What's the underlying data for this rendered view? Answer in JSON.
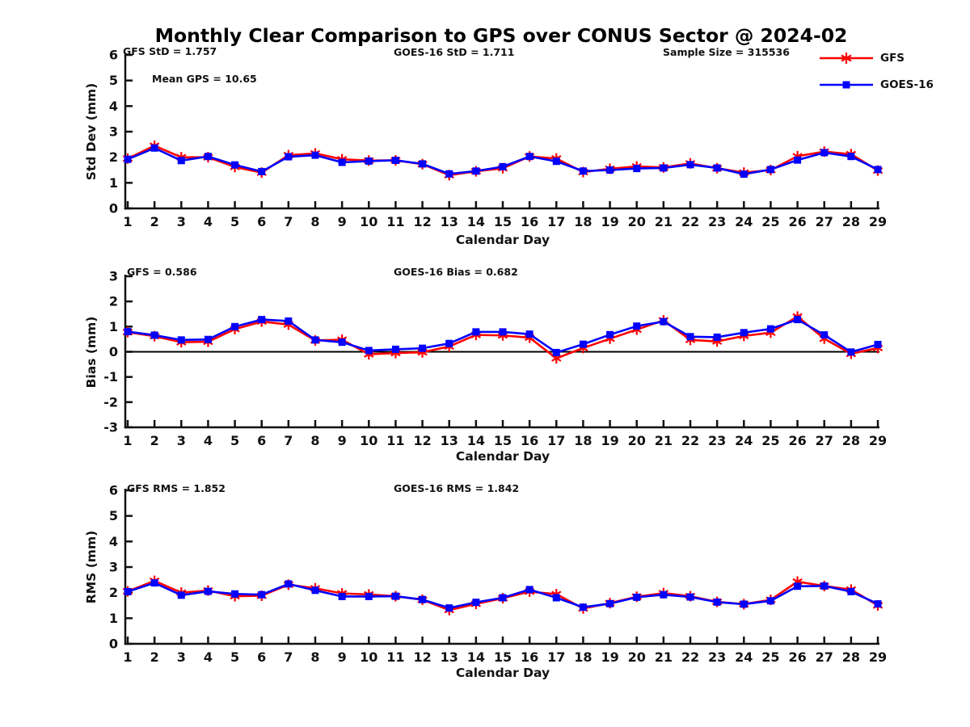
{
  "title": "Monthly Clear Comparison to GPS over CONUS Sector @ 2024-02",
  "xlabel": "Calendar Day",
  "colors": {
    "gfs": "#ff0000",
    "goes16": "#0000ff",
    "axis": "#111111",
    "zero_line": "#000000"
  },
  "legend": [
    {
      "label": "GFS",
      "color": "#ff0000",
      "marker": "asterisk"
    },
    {
      "label": "GOES-16",
      "color": "#0000ff",
      "marker": "square"
    }
  ],
  "chart_data": [
    {
      "type": "line",
      "ylabel": "Std Dev (mm)",
      "ylim": [
        0,
        6
      ],
      "yticks": [
        0,
        1,
        2,
        3,
        4,
        5,
        6
      ],
      "grid": false,
      "annotations": [
        {
          "text": "GFS StD = 1.757"
        },
        {
          "text": "GOES-16 StD = 1.711"
        },
        {
          "text": "Sample Size = 315536"
        },
        {
          "text": "Mean GPS = 10.65"
        }
      ],
      "x": [
        1,
        2,
        3,
        4,
        5,
        6,
        7,
        8,
        9,
        10,
        11,
        12,
        13,
        14,
        15,
        16,
        17,
        18,
        19,
        20,
        21,
        22,
        23,
        24,
        25,
        26,
        27,
        28,
        29
      ],
      "series": [
        {
          "name": "GFS",
          "color": "#ff0000",
          "marker": "asterisk",
          "values": [
            1.95,
            2.45,
            2.0,
            2.0,
            1.62,
            1.4,
            2.08,
            2.15,
            1.92,
            1.87,
            1.88,
            1.73,
            1.3,
            1.45,
            1.57,
            2.03,
            1.95,
            1.42,
            1.55,
            1.64,
            1.6,
            1.76,
            1.57,
            1.4,
            1.5,
            2.04,
            2.22,
            2.12,
            1.48
          ]
        },
        {
          "name": "GOES-16",
          "color": "#0000ff",
          "marker": "square",
          "values": [
            1.92,
            2.36,
            1.87,
            2.03,
            1.7,
            1.44,
            2.02,
            2.08,
            1.8,
            1.85,
            1.88,
            1.74,
            1.35,
            1.46,
            1.63,
            2.03,
            1.84,
            1.46,
            1.5,
            1.56,
            1.58,
            1.71,
            1.58,
            1.34,
            1.52,
            1.89,
            2.18,
            2.03,
            1.52
          ]
        }
      ]
    },
    {
      "type": "line",
      "ylabel": "Bias (mm)",
      "ylim": [
        -3,
        3
      ],
      "yticks": [
        -3,
        -2,
        -1,
        0,
        1,
        2,
        3
      ],
      "zero_line": true,
      "grid": false,
      "annotations": [
        {
          "text": "GFS = 0.586"
        },
        {
          "text": "GOES-16 Bias = 0.682"
        }
      ],
      "x": [
        1,
        2,
        3,
        4,
        5,
        6,
        7,
        8,
        9,
        10,
        11,
        12,
        13,
        14,
        15,
        16,
        17,
        18,
        19,
        20,
        21,
        22,
        23,
        24,
        25,
        26,
        27,
        28,
        29
      ],
      "series": [
        {
          "name": "GFS",
          "color": "#ff0000",
          "marker": "asterisk",
          "values": [
            0.78,
            0.62,
            0.38,
            0.4,
            0.9,
            1.2,
            1.08,
            0.45,
            0.48,
            -0.1,
            -0.05,
            -0.02,
            0.21,
            0.67,
            0.65,
            0.56,
            -0.26,
            0.15,
            0.52,
            0.88,
            1.25,
            0.47,
            0.41,
            0.63,
            0.76,
            1.4,
            0.52,
            -0.08,
            0.15
          ]
        },
        {
          "name": "GOES-16",
          "color": "#0000ff",
          "marker": "square",
          "values": [
            0.8,
            0.66,
            0.47,
            0.49,
            1.0,
            1.28,
            1.22,
            0.47,
            0.38,
            0.05,
            0.1,
            0.14,
            0.33,
            0.79,
            0.79,
            0.7,
            -0.03,
            0.3,
            0.68,
            1.02,
            1.2,
            0.6,
            0.58,
            0.76,
            0.91,
            1.28,
            0.67,
            -0.01,
            0.29
          ]
        }
      ]
    },
    {
      "type": "line",
      "ylabel": "RMS (mm)",
      "ylim": [
        0,
        6
      ],
      "yticks": [
        0,
        1,
        2,
        3,
        4,
        5,
        6
      ],
      "grid": false,
      "annotations": [
        {
          "text": "GFS RMS = 1.852"
        },
        {
          "text": "GOES-16 RMS = 1.842"
        }
      ],
      "x": [
        1,
        2,
        3,
        4,
        5,
        6,
        7,
        8,
        9,
        10,
        11,
        12,
        13,
        14,
        15,
        16,
        17,
        18,
        19,
        20,
        21,
        22,
        23,
        24,
        25,
        26,
        27,
        28,
        29
      ],
      "series": [
        {
          "name": "GFS",
          "color": "#ff0000",
          "marker": "asterisk",
          "values": [
            2.05,
            2.46,
            2.0,
            2.08,
            1.86,
            1.88,
            2.31,
            2.17,
            1.97,
            1.93,
            1.86,
            1.72,
            1.32,
            1.56,
            1.78,
            2.04,
            1.94,
            1.38,
            1.59,
            1.84,
            1.98,
            1.86,
            1.64,
            1.55,
            1.72,
            2.43,
            2.26,
            2.12,
            1.5
          ]
        },
        {
          "name": "GOES-16",
          "color": "#0000ff",
          "marker": "square",
          "values": [
            2.04,
            2.38,
            1.9,
            2.05,
            1.95,
            1.92,
            2.34,
            2.09,
            1.85,
            1.85,
            1.86,
            1.73,
            1.4,
            1.62,
            1.8,
            2.12,
            1.8,
            1.43,
            1.57,
            1.82,
            1.92,
            1.83,
            1.63,
            1.55,
            1.68,
            2.25,
            2.26,
            2.04,
            1.56
          ]
        }
      ]
    }
  ]
}
